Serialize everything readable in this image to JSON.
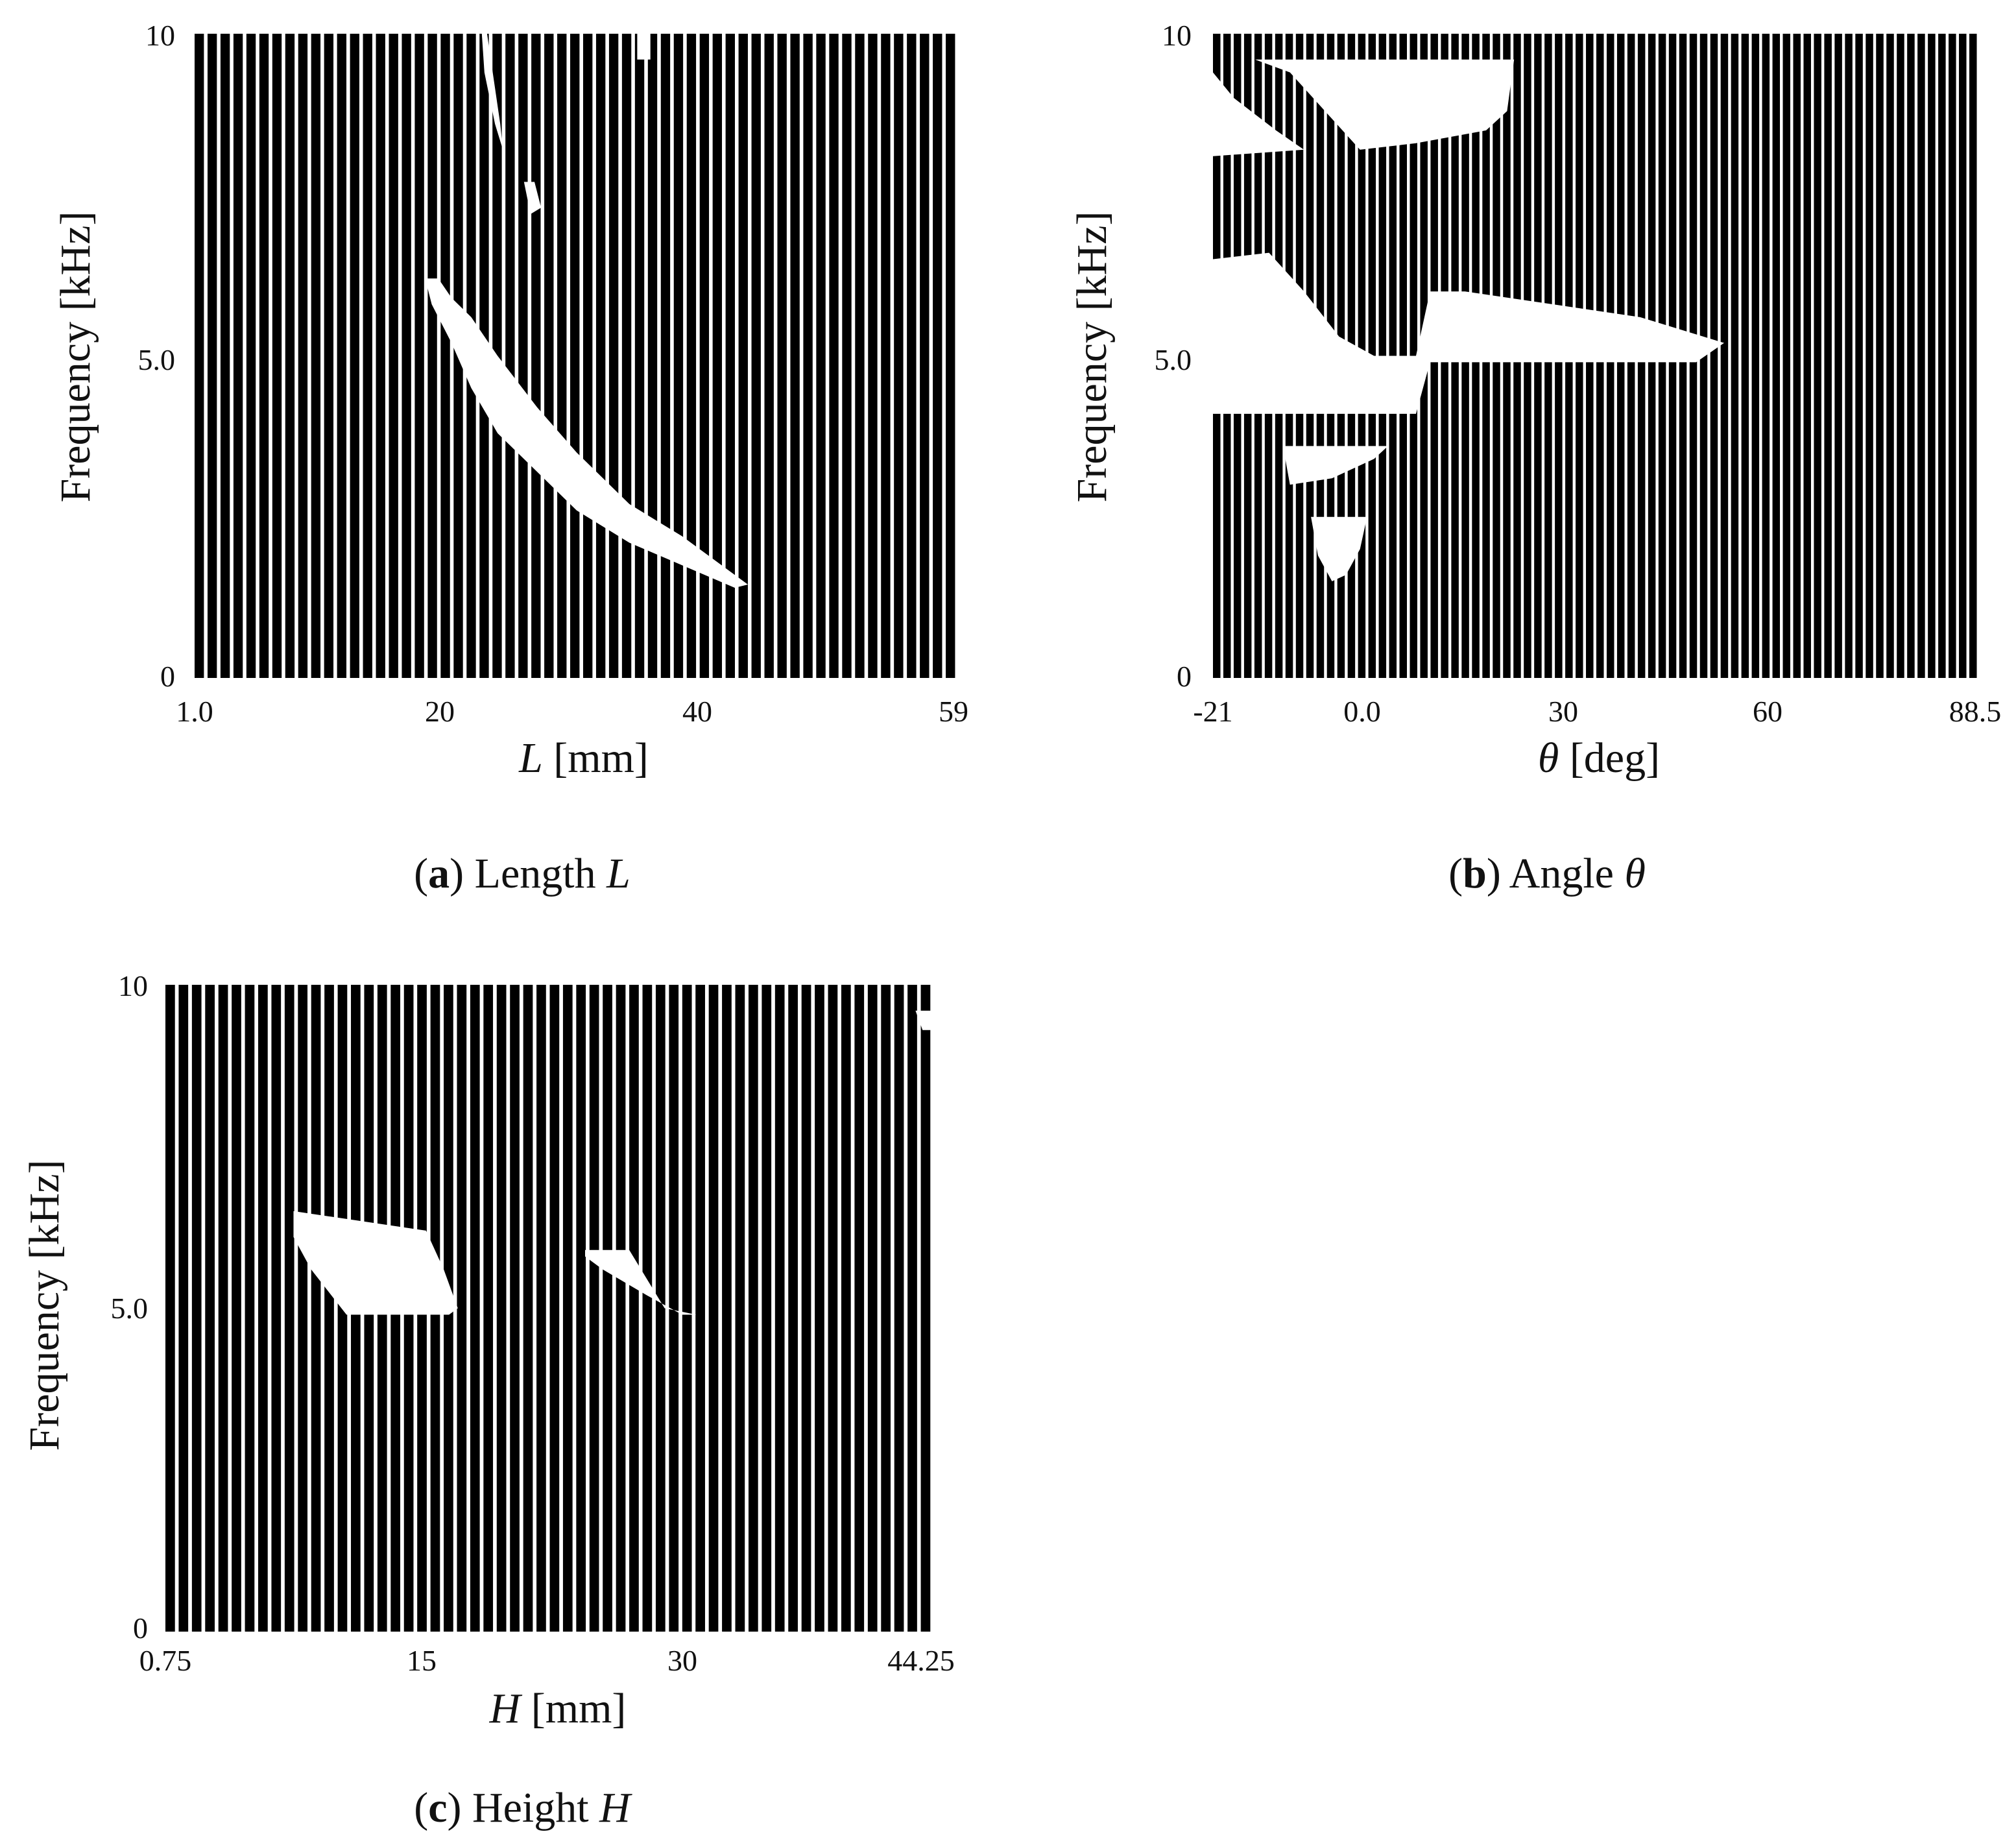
{
  "chart_data": [
    {
      "type": "heatmap",
      "panel": "a",
      "caption": {
        "letter": "a",
        "text": "Length",
        "symbol": "L"
      },
      "xlabel": {
        "symbol": "L",
        "unit": "[mm]"
      },
      "ylabel": "Frequency [kHz]",
      "xticks": [
        "1.0",
        "20",
        "40",
        "59"
      ],
      "xtick_values": [
        1.0,
        20,
        40,
        59
      ],
      "yticks": [
        "0",
        "5.0",
        "10"
      ],
      "ytick_values": [
        0,
        5,
        10
      ],
      "xlim": [
        1.0,
        59
      ],
      "ylim": [
        0,
        10
      ],
      "n_strips": 59,
      "colors": {
        "filled": "#000000",
        "background": "#ffffff"
      },
      "white_regions": [
        {
          "points": [
            [
              18.5,
              6.2
            ],
            [
              19.5,
              6.2
            ],
            [
              20.5,
              5.9
            ],
            [
              22,
              5.6
            ],
            [
              24,
              5.0
            ],
            [
              27,
              4.2
            ],
            [
              30,
              3.5
            ],
            [
              34,
              2.7
            ],
            [
              38,
              2.2
            ],
            [
              43,
              1.45
            ],
            [
              42,
              1.4
            ],
            [
              38,
              1.75
            ],
            [
              34,
              2.1
            ],
            [
              30,
              2.6
            ],
            [
              27,
              3.2
            ],
            [
              24,
              3.8
            ],
            [
              22,
              4.5
            ],
            [
              20.5,
              5.2
            ],
            [
              19,
              5.8
            ]
          ]
        },
        {
          "points": [
            [
              22.8,
              10
            ],
            [
              23.2,
              10
            ],
            [
              24.2,
              8.6
            ],
            [
              24.4,
              8.2
            ],
            [
              23.8,
              8.6
            ],
            [
              23,
              9.4
            ]
          ]
        },
        {
          "points": [
            [
              26,
              7.7
            ],
            [
              26.8,
              7.7
            ],
            [
              27.3,
              7.3
            ],
            [
              26.5,
              7.2
            ]
          ]
        },
        {
          "points": [
            [
              34.6,
              10
            ],
            [
              35.6,
              10
            ],
            [
              35.6,
              9.6
            ],
            [
              34.6,
              9.6
            ]
          ]
        }
      ]
    },
    {
      "type": "heatmap",
      "panel": "b",
      "caption": {
        "letter": "b",
        "text": "Angle",
        "symbol": "θ"
      },
      "xlabel": {
        "symbol": "θ",
        "unit": "[deg]"
      },
      "ylabel": "Frequency [kHz]",
      "xticks": [
        "-21",
        "0.0",
        "30",
        "60",
        "88.5"
      ],
      "xtick_values": [
        -21,
        0,
        30,
        60,
        88.5
      ],
      "yticks": [
        "0",
        "5.0",
        "10"
      ],
      "ytick_values": [
        0,
        5,
        10
      ],
      "xlim": [
        -21,
        88.5
      ],
      "ylim": [
        0,
        10
      ],
      "n_strips": 74,
      "colors": {
        "filled": "#000000",
        "background": "#ffffff"
      },
      "white_regions": [
        {
          "points": [
            [
              -15,
              9.6
            ],
            [
              22,
              9.6
            ],
            [
              21,
              8.8
            ],
            [
              18,
              8.5
            ],
            [
              8,
              8.3
            ],
            [
              0,
              8.2
            ],
            [
              -5,
              8.8
            ],
            [
              -10,
              9.4
            ]
          ]
        },
        {
          "points": [
            [
              -21,
              9.4
            ],
            [
              -18,
              9.0
            ],
            [
              -12,
              8.5
            ],
            [
              -8,
              8.2
            ],
            [
              -21,
              8.1
            ]
          ]
        },
        {
          "points": [
            [
              -21,
              6.5
            ],
            [
              -13,
              6.6
            ],
            [
              -8,
              6.0
            ],
            [
              -3,
              5.3
            ],
            [
              2,
              5.0
            ],
            [
              8,
              5.0
            ],
            [
              10,
              6.0
            ],
            [
              15,
              6.0
            ],
            [
              40,
              5.6
            ],
            [
              52,
              5.2
            ],
            [
              48,
              4.9
            ],
            [
              10,
              4.9
            ],
            [
              8,
              4.1
            ],
            [
              -21,
              4.1
            ]
          ]
        },
        {
          "points": [
            [
              -11,
              3.6
            ],
            [
              4,
              3.6
            ],
            [
              2,
              3.4
            ],
            [
              -4,
              3.1
            ],
            [
              -10,
              3.0
            ]
          ]
        },
        {
          "points": [
            [
              -7,
              2.5
            ],
            [
              1,
              2.5
            ],
            [
              0,
              2.0
            ],
            [
              -2,
              1.6
            ],
            [
              -4,
              1.5
            ],
            [
              -6,
              1.9
            ]
          ]
        }
      ]
    },
    {
      "type": "heatmap",
      "panel": "c",
      "caption": {
        "letter": "c",
        "text": "Height",
        "symbol": "H"
      },
      "xlabel": {
        "symbol": "H",
        "unit": "[mm]"
      },
      "ylabel": "Frequency [kHz]",
      "xticks": [
        "0.75",
        "15",
        "30",
        "44.25"
      ],
      "xtick_values": [
        0.75,
        15,
        30,
        44.25
      ],
      "yticks": [
        "0",
        "5.0",
        "10"
      ],
      "ytick_values": [
        0,
        5,
        10
      ],
      "xlim": [
        0.75,
        44.25
      ],
      "ylim": [
        0,
        10
      ],
      "n_strips": 58,
      "colors": {
        "filled": "#000000",
        "background": "#ffffff"
      },
      "white_regions": [
        {
          "points": [
            [
              8,
              6.5
            ],
            [
              15.5,
              6.2
            ],
            [
              16.5,
              5.6
            ],
            [
              17.3,
              5.0
            ],
            [
              16.8,
              4.9
            ],
            [
              11,
              4.9
            ],
            [
              9,
              5.6
            ],
            [
              8,
              6.1
            ]
          ]
        },
        {
          "points": [
            [
              24.5,
              5.9
            ],
            [
              27,
              5.9
            ],
            [
              29,
              5.0
            ],
            [
              30.8,
              4.9
            ],
            [
              30,
              4.9
            ],
            [
              28,
              5.2
            ],
            [
              25.5,
              5.6
            ],
            [
              24.5,
              5.8
            ]
          ]
        },
        {
          "points": [
            [
              43.2,
              9.6
            ],
            [
              44.2,
              9.6
            ],
            [
              44.2,
              9.3
            ],
            [
              43.6,
              9.3
            ]
          ]
        }
      ]
    }
  ]
}
